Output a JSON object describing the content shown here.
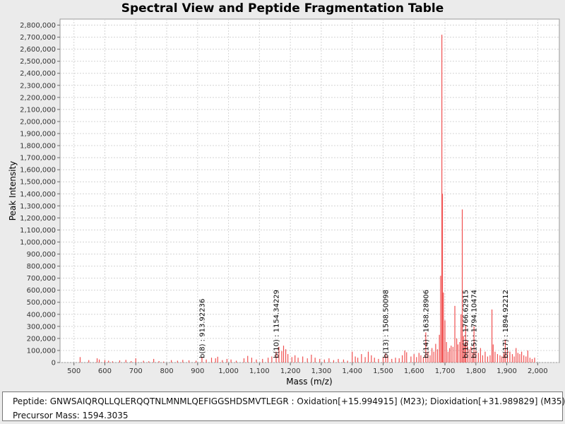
{
  "chart_data": {
    "type": "bar",
    "title": "Spectral View and Peptide Fragmentation Table",
    "xlabel": "Mass (m/z)",
    "ylabel": "Peak Intensity",
    "xlim": [
      455,
      2070
    ],
    "ylim": [
      0,
      2850000
    ],
    "x_ticks": [
      "500",
      "600",
      "700",
      "800",
      "900",
      "1,000",
      "1,100",
      "1,200",
      "1,300",
      "1,400",
      "1,500",
      "1,600",
      "1,700",
      "1,800",
      "1,900",
      "2,000"
    ],
    "x_tick_values": [
      500,
      600,
      700,
      800,
      900,
      1000,
      1100,
      1200,
      1300,
      1400,
      1500,
      1600,
      1700,
      1800,
      1900,
      2000
    ],
    "y_ticks": [
      "0",
      "100,000",
      "200,000",
      "300,000",
      "400,000",
      "500,000",
      "600,000",
      "700,000",
      "800,000",
      "900,000",
      "1,000,000",
      "1,100,000",
      "1,200,000",
      "1,300,000",
      "1,400,000",
      "1,500,000",
      "1,600,000",
      "1,700,000",
      "1,800,000",
      "1,900,000",
      "2,000,000",
      "2,100,000",
      "2,200,000",
      "2,300,000",
      "2,400,000",
      "2,500,000",
      "2,600,000",
      "2,700,000",
      "2,800,000"
    ],
    "y_tick_values": [
      0,
      100000,
      200000,
      300000,
      400000,
      500000,
      600000,
      700000,
      800000,
      900000,
      1000000,
      1100000,
      1200000,
      1300000,
      1400000,
      1500000,
      1600000,
      1700000,
      1800000,
      1900000,
      2000000,
      2100000,
      2200000,
      2300000,
      2400000,
      2500000,
      2600000,
      2700000,
      2800000
    ],
    "grid": true,
    "peak_color": "#f05050",
    "peaks": [
      [
        520,
        45000
      ],
      [
        548,
        20000
      ],
      [
        575,
        35000
      ],
      [
        582,
        25000
      ],
      [
        600,
        20000
      ],
      [
        612,
        15000
      ],
      [
        625,
        10000
      ],
      [
        648,
        18000
      ],
      [
        668,
        22000
      ],
      [
        685,
        12000
      ],
      [
        700,
        35000
      ],
      [
        725,
        15000
      ],
      [
        742,
        10000
      ],
      [
        758,
        30000
      ],
      [
        775,
        12000
      ],
      [
        790,
        8000
      ],
      [
        815,
        20000
      ],
      [
        835,
        15000
      ],
      [
        852,
        22000
      ],
      [
        872,
        18000
      ],
      [
        895,
        15000
      ],
      [
        914,
        45000
      ],
      [
        928,
        25000
      ],
      [
        945,
        40000
      ],
      [
        958,
        35000
      ],
      [
        965,
        48000
      ],
      [
        980,
        20000
      ],
      [
        995,
        30000
      ],
      [
        1008,
        25000
      ],
      [
        1025,
        15000
      ],
      [
        1050,
        35000
      ],
      [
        1062,
        55000
      ],
      [
        1075,
        40000
      ],
      [
        1090,
        25000
      ],
      [
        1110,
        30000
      ],
      [
        1128,
        40000
      ],
      [
        1140,
        50000
      ],
      [
        1154,
        90000
      ],
      [
        1163,
        130000
      ],
      [
        1172,
        95000
      ],
      [
        1178,
        140000
      ],
      [
        1185,
        110000
      ],
      [
        1192,
        70000
      ],
      [
        1205,
        45000
      ],
      [
        1215,
        60000
      ],
      [
        1225,
        40000
      ],
      [
        1240,
        50000
      ],
      [
        1255,
        35000
      ],
      [
        1268,
        65000
      ],
      [
        1280,
        40000
      ],
      [
        1295,
        30000
      ],
      [
        1310,
        25000
      ],
      [
        1325,
        35000
      ],
      [
        1340,
        20000
      ],
      [
        1355,
        30000
      ],
      [
        1372,
        25000
      ],
      [
        1385,
        15000
      ],
      [
        1400,
        90000
      ],
      [
        1410,
        50000
      ],
      [
        1418,
        40000
      ],
      [
        1430,
        70000
      ],
      [
        1442,
        45000
      ],
      [
        1452,
        90000
      ],
      [
        1462,
        60000
      ],
      [
        1472,
        40000
      ],
      [
        1485,
        30000
      ],
      [
        1500,
        45000
      ],
      [
        1508,
        75000
      ],
      [
        1515,
        55000
      ],
      [
        1528,
        30000
      ],
      [
        1540,
        40000
      ],
      [
        1552,
        35000
      ],
      [
        1562,
        60000
      ],
      [
        1570,
        100000
      ],
      [
        1576,
        85000
      ],
      [
        1590,
        50000
      ],
      [
        1600,
        70000
      ],
      [
        1608,
        45000
      ],
      [
        1616,
        80000
      ],
      [
        1622,
        60000
      ],
      [
        1630,
        40000
      ],
      [
        1638,
        250000
      ],
      [
        1645,
        90000
      ],
      [
        1652,
        60000
      ],
      [
        1658,
        120000
      ],
      [
        1664,
        90000
      ],
      [
        1670,
        155000
      ],
      [
        1676,
        110000
      ],
      [
        1682,
        230000
      ],
      [
        1686,
        720000
      ],
      [
        1690,
        2720000
      ],
      [
        1692,
        1400000
      ],
      [
        1695,
        580000
      ],
      [
        1700,
        350000
      ],
      [
        1705,
        170000
      ],
      [
        1710,
        90000
      ],
      [
        1715,
        120000
      ],
      [
        1720,
        140000
      ],
      [
        1726,
        130000
      ],
      [
        1732,
        470000
      ],
      [
        1738,
        200000
      ],
      [
        1742,
        150000
      ],
      [
        1748,
        170000
      ],
      [
        1752,
        400000
      ],
      [
        1756,
        1270000
      ],
      [
        1760,
        220000
      ],
      [
        1764,
        150000
      ],
      [
        1767,
        310000
      ],
      [
        1772,
        180000
      ],
      [
        1778,
        110000
      ],
      [
        1784,
        130000
      ],
      [
        1790,
        80000
      ],
      [
        1794,
        300000
      ],
      [
        1800,
        100000
      ],
      [
        1808,
        80000
      ],
      [
        1815,
        120000
      ],
      [
        1822,
        60000
      ],
      [
        1830,
        90000
      ],
      [
        1838,
        50000
      ],
      [
        1846,
        60000
      ],
      [
        1852,
        440000
      ],
      [
        1856,
        150000
      ],
      [
        1862,
        90000
      ],
      [
        1870,
        70000
      ],
      [
        1878,
        60000
      ],
      [
        1884,
        50000
      ],
      [
        1890,
        80000
      ],
      [
        1895,
        190000
      ],
      [
        1902,
        110000
      ],
      [
        1910,
        90000
      ],
      [
        1918,
        70000
      ],
      [
        1924,
        50000
      ],
      [
        1930,
        120000
      ],
      [
        1936,
        80000
      ],
      [
        1942,
        70000
      ],
      [
        1948,
        90000
      ],
      [
        1955,
        60000
      ],
      [
        1962,
        50000
      ],
      [
        1968,
        100000
      ],
      [
        1975,
        40000
      ],
      [
        1982,
        30000
      ],
      [
        1990,
        40000
      ]
    ],
    "annotations": [
      {
        "label": "b(8) : 913.92236",
        "mz": 913.92236
      },
      {
        "label": "b(10) : 1154.34229",
        "mz": 1154.34229
      },
      {
        "label": "b(13) : 1508.50098",
        "mz": 1508.50098
      },
      {
        "label": "b(14) : 1638.28906",
        "mz": 1638.28906
      },
      {
        "label": "b(16) : 1766.62915",
        "mz": 1766.62915
      },
      {
        "label": "b(15) : 1794.10474",
        "mz": 1794.10474
      },
      {
        "label": "b(17) : 1894.92212",
        "mz": 1894.92212
      }
    ]
  },
  "info": {
    "peptide": "Peptide: GNWSAIQRQLLQLERQQTNLMNMLQEFIGGSHDSMVTLEGR : Oxidation[+15.994915] (M23); Dioxidation[+31.989829] (M35)",
    "precursor": "Precursor Mass: 1594.3035"
  }
}
